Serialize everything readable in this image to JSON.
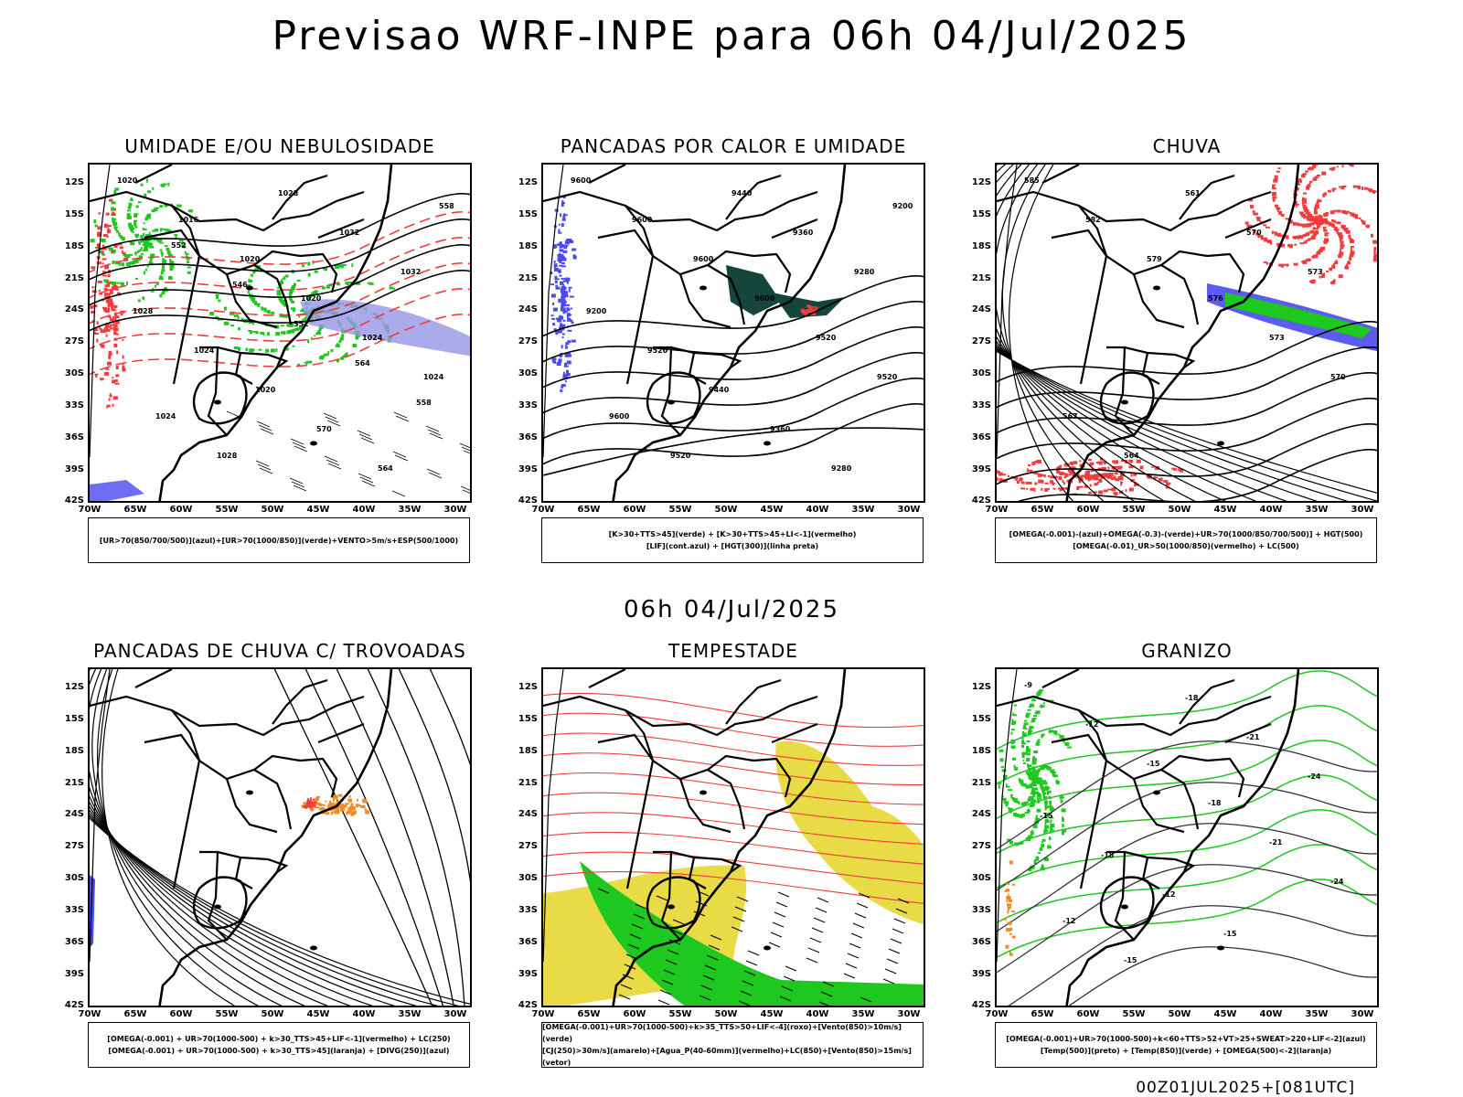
{
  "header": {
    "title": "Previsao WRF-INPE  para 06h 04/Jul/2025",
    "mid_title": "06h 04/Jul/2025",
    "footer": "00Z01JUL2025+[081UTC]"
  },
  "axes": {
    "lat_labels": [
      "12S",
      "15S",
      "18S",
      "21S",
      "24S",
      "27S",
      "30S",
      "33S",
      "36S",
      "39S",
      "42S"
    ],
    "lon_labels": [
      "70W",
      "65W",
      "60W",
      "55W",
      "50W",
      "45W",
      "40W",
      "35W",
      "30W"
    ]
  },
  "colors": {
    "blue": "#4a4af0",
    "green": "#1ec81e",
    "red": "#f03c3c",
    "orange": "#f08c28",
    "yellow": "#e6d732",
    "darkteal": "#14463c",
    "lightblue": "#9696e6"
  },
  "panels": [
    {
      "title": "UMIDADE E/OU NEBULOSIDADE",
      "legend": [
        "[UR>70(850/700/500)](azul)+[UR>70(1000/850)](verde)+VENTO>5m/s+ESP(500/1000)"
      ],
      "contour_labels": [
        "1020",
        "1016",
        "1020",
        "1020",
        "1024",
        "1024",
        "1024",
        "1028",
        "1028",
        "1032",
        "1032",
        "1028",
        "1024",
        "1020",
        "570",
        "564",
        "558",
        "552",
        "546",
        "552",
        "564",
        "558"
      ]
    },
    {
      "title": "PANCADAS POR CALOR E UMIDADE",
      "legend": [
        "[K>30+TTS>45](verde) + [K>30+TTS>45+LI<-1](vermelho)",
        "[LIF](cont.azul) + [HGT(300)](linha preta)"
      ],
      "contour_labels": [
        "9600",
        "9600",
        "9600",
        "9600",
        "9520",
        "9520",
        "9600",
        "9520",
        "9440",
        "9360",
        "9280",
        "9200",
        "9520",
        "9440",
        "9360",
        "9280",
        "9200"
      ]
    },
    {
      "title": "CHUVA",
      "legend": [
        "[OMEGA(-0.001)-(azul)+OMEGA(-0.3)-(verde)+UR>70(1000/850/700/500)] + HGT(500)",
        "[OMEGA(-0.01)_UR>50(1000/850)(vermelho) + LC(500)"
      ],
      "contour_labels": [
        "585",
        "582",
        "579",
        "576",
        "573",
        "570",
        "567",
        "564",
        "561",
        "570",
        "573"
      ]
    },
    {
      "title": "PANCADAS DE CHUVA C/ TROVOADAS",
      "legend": [
        "[OMEGA(-0.001) + UR>70(1000-500) + k>30_TTS>45+LIF<-1](vermelho) + LC(250)",
        "[OMEGA(-0.001) + UR>70(1000-500) + k>30_TTS>45](laranja) + [DIVG(250)](azul)"
      ],
      "contour_labels": []
    },
    {
      "title": "TEMPESTADE",
      "legend": [
        "[OMEGA(-0.001)+UR>70(1000-500)+k>35_TTS>50+LIF<-4](roxo)+[Vento(850)>10m/s](verde)",
        "[CJ(250)>30m/s](amarelo)+[Agua_P(40-60mm)](vermelho)+LC(850)+[Vento(850)>15m/s](vetor)"
      ],
      "contour_labels": []
    },
    {
      "title": "GRANIZO",
      "legend": [
        "[OMEGA(-0.001)+UR>70(1000-500)+k<60+TTS>52+VT>25+SWEAT>220+LIF<-2](azul)",
        "[Temp(500)](preto) + [Temp(850)](verde) + [OMEGA(500)<-2](laranja)"
      ],
      "contour_labels": [
        "-9",
        "-12",
        "-15",
        "-18",
        "-21",
        "-24",
        "-12",
        "-15",
        "-18",
        "-21",
        "-24",
        "-15",
        "-18",
        "-12",
        "-15"
      ]
    }
  ]
}
